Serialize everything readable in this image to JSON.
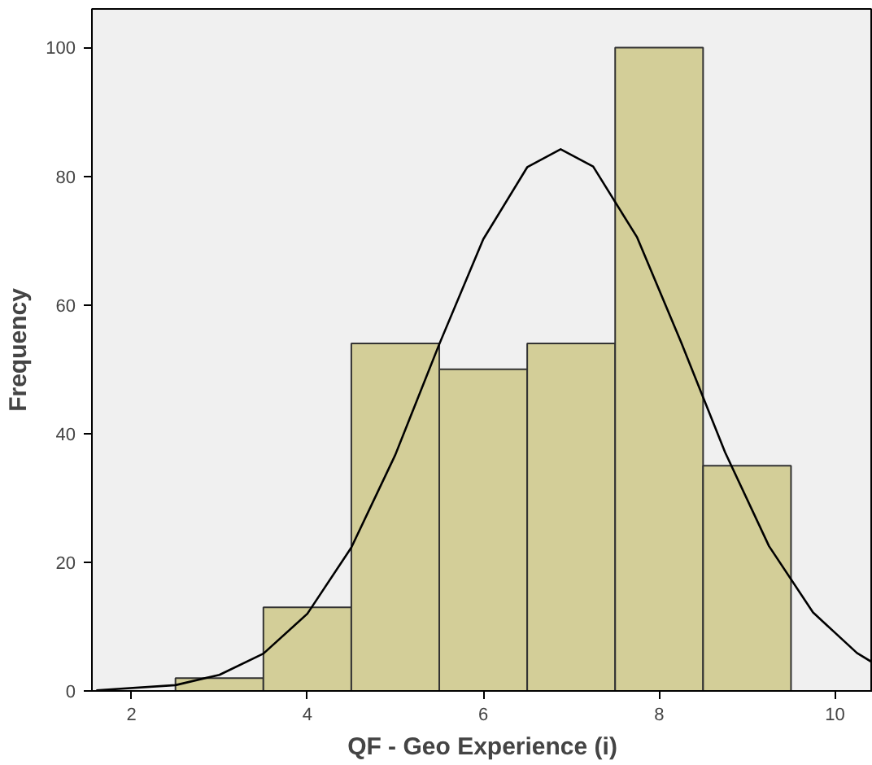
{
  "chart_data": {
    "type": "histogram",
    "xlabel": "QF - Geo Experience (i)",
    "ylabel": "Frequency",
    "bins": [
      2.5,
      3.5,
      4.5,
      5.5,
      6.5,
      7.5,
      8.5,
      9.5
    ],
    "values": [
      2,
      13,
      54,
      50,
      54,
      100,
      35
    ],
    "color": "#d3ce98",
    "series": [
      {
        "type": "line",
        "color": "#000000",
        "x": [
          1.6,
          2.5,
          3,
          3.5,
          4,
          4.5,
          5,
          5.5,
          6,
          6.5,
          6.88,
          7.25,
          7.75,
          8.25,
          8.75,
          9.25,
          9.75,
          10.25,
          10.43
        ],
        "values": [
          0.1,
          0.9,
          2.5,
          5.8,
          12,
          22.3,
          36.7,
          53.9,
          70.2,
          81.4,
          84.2,
          81.5,
          70.5,
          54.2,
          37.1,
          22.5,
          12.2,
          5.9,
          4.4
        ]
      }
    ],
    "xlim": [
      1.55,
      10.43
    ],
    "ylim": [
      0,
      106
    ],
    "xticks": [
      2,
      4,
      6,
      8,
      10
    ],
    "yticks": [
      0,
      20,
      40,
      60,
      80,
      100
    ],
    "grid": false
  }
}
